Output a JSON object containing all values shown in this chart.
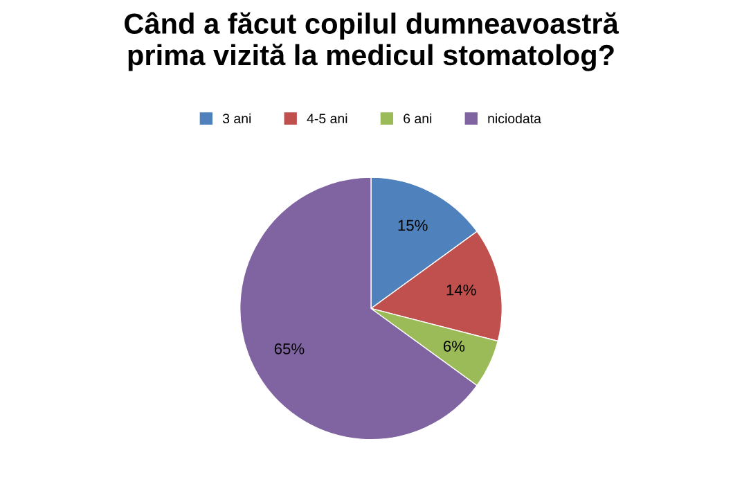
{
  "chart_data": {
    "type": "pie",
    "title": "Când a făcut copilul dumneavoastră\nprima vizită la medicul stomatolog?",
    "categories": [
      "3 ani",
      "4-5 ani",
      "6 ani",
      "niciodata"
    ],
    "values": [
      15,
      14,
      6,
      65
    ],
    "colors": [
      "#4f81bd",
      "#c0504d",
      "#9bbb59",
      "#8064a2"
    ],
    "value_labels": [
      "15%",
      "14%",
      "6%",
      "65%"
    ],
    "legend": "top"
  }
}
